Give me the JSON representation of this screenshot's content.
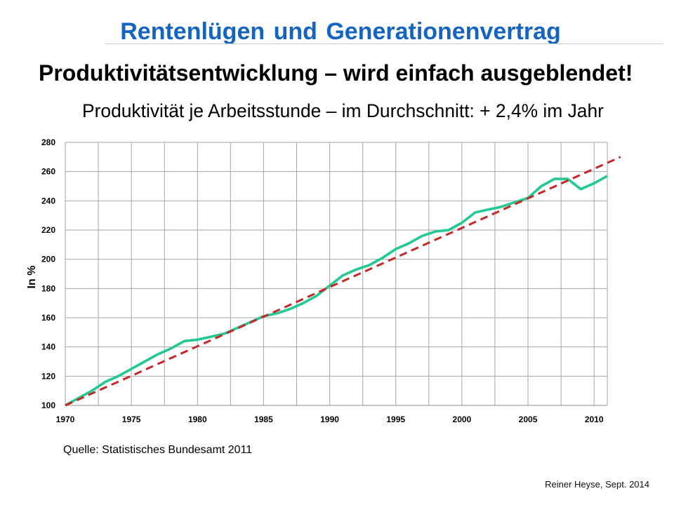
{
  "slide": {
    "title": "Rentenlügen und Generationenvertrag",
    "subtitle": "Produktivitätsentwicklung – wird einfach ausgeblendet!"
  },
  "footer": {
    "source": "Quelle: Statistisches Bundesamt 2011",
    "author": "Reiner Heyse, Sept. 2014"
  },
  "colors": {
    "title": "#1565c0",
    "grid": "#a6a6a6",
    "axis": "#8c8c8c"
  },
  "chart_data": {
    "type": "line",
    "title": "Produktivität je Arbeitsstunde – im Durchschnitt: + 2,4% im Jahr",
    "ylabel": "In %",
    "xlim": [
      1970,
      2011
    ],
    "ylim": [
      100,
      280
    ],
    "x_ticks": [
      1970,
      1975,
      1980,
      1985,
      1990,
      1995,
      2000,
      2005,
      2010
    ],
    "y_ticks": [
      100,
      120,
      140,
      160,
      180,
      200,
      220,
      240,
      260,
      280
    ],
    "grid": true,
    "legend": "none",
    "series": [
      {
        "style": "solid",
        "color": "#22c993",
        "x": [
          1970,
          1971,
          1972,
          1973,
          1974,
          1975,
          1976,
          1977,
          1978,
          1979,
          1980,
          1981,
          1982,
          1983,
          1984,
          1985,
          1986,
          1987,
          1988,
          1989,
          1990,
          1991,
          1992,
          1993,
          1994,
          1995,
          1996,
          1997,
          1998,
          1999,
          2000,
          2001,
          2002,
          2003,
          2004,
          2005,
          2006,
          2007,
          2008,
          2009,
          2010,
          2011
        ],
        "values": [
          100,
          105,
          110,
          116,
          120,
          125,
          130,
          135,
          139,
          144,
          145,
          147,
          149,
          153,
          157,
          161,
          163,
          166,
          170,
          175,
          182,
          189,
          193,
          196,
          201,
          207,
          211,
          216,
          219,
          220,
          225,
          232,
          234,
          236,
          239,
          242,
          250,
          255,
          255,
          248,
          252,
          257
        ]
      },
      {
        "style": "dashed",
        "color": "#c62828",
        "x": [
          1970,
          2012
        ],
        "values": [
          100,
          270
        ]
      }
    ]
  }
}
